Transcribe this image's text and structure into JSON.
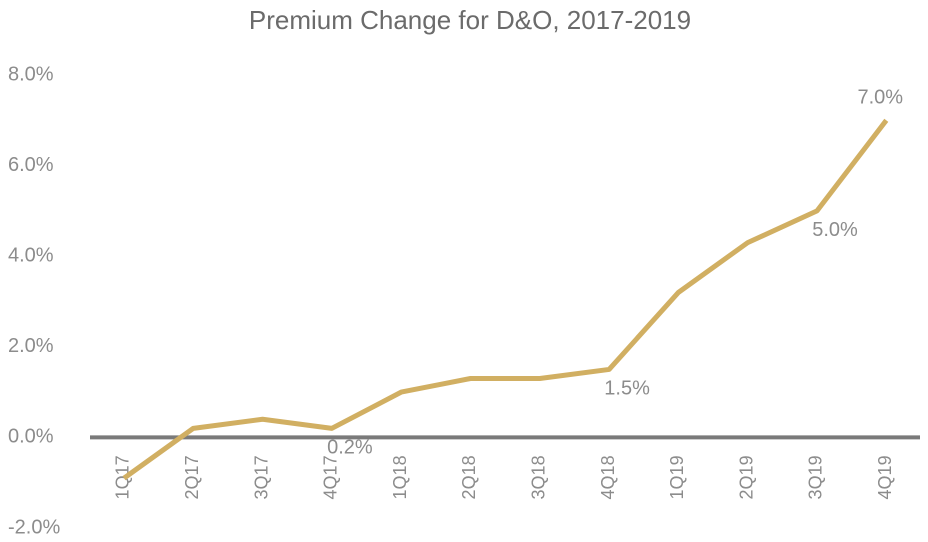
{
  "chart_data": {
    "type": "line",
    "title": "Premium Change for D&O, 2017-2019",
    "categories": [
      "1Q17",
      "2Q17",
      "3Q17",
      "4Q17",
      "1Q18",
      "2Q18",
      "3Q18",
      "4Q18",
      "1Q19",
      "2Q19",
      "3Q19",
      "4Q19"
    ],
    "series": [
      {
        "name": "Premium Change",
        "color": "#d1af62",
        "values": [
          -0.9,
          0.2,
          0.4,
          0.2,
          1.0,
          1.3,
          1.3,
          1.5,
          3.2,
          4.3,
          5.0,
          7.0
        ]
      }
    ],
    "value_labels": [
      null,
      null,
      null,
      "0.2%",
      null,
      null,
      null,
      "1.5%",
      null,
      null,
      "5.0%",
      "7.0%"
    ],
    "ylim": [
      -2,
      8
    ],
    "yticks": [
      {
        "value": -2,
        "label": "-2.0%"
      },
      {
        "value": 0,
        "label": "0.0%"
      },
      {
        "value": 2,
        "label": "2.0%"
      },
      {
        "value": 4,
        "label": "4.0%"
      },
      {
        "value": 6,
        "label": "6.0%"
      },
      {
        "value": 8,
        "label": "8.0%"
      }
    ],
    "grid": false
  }
}
